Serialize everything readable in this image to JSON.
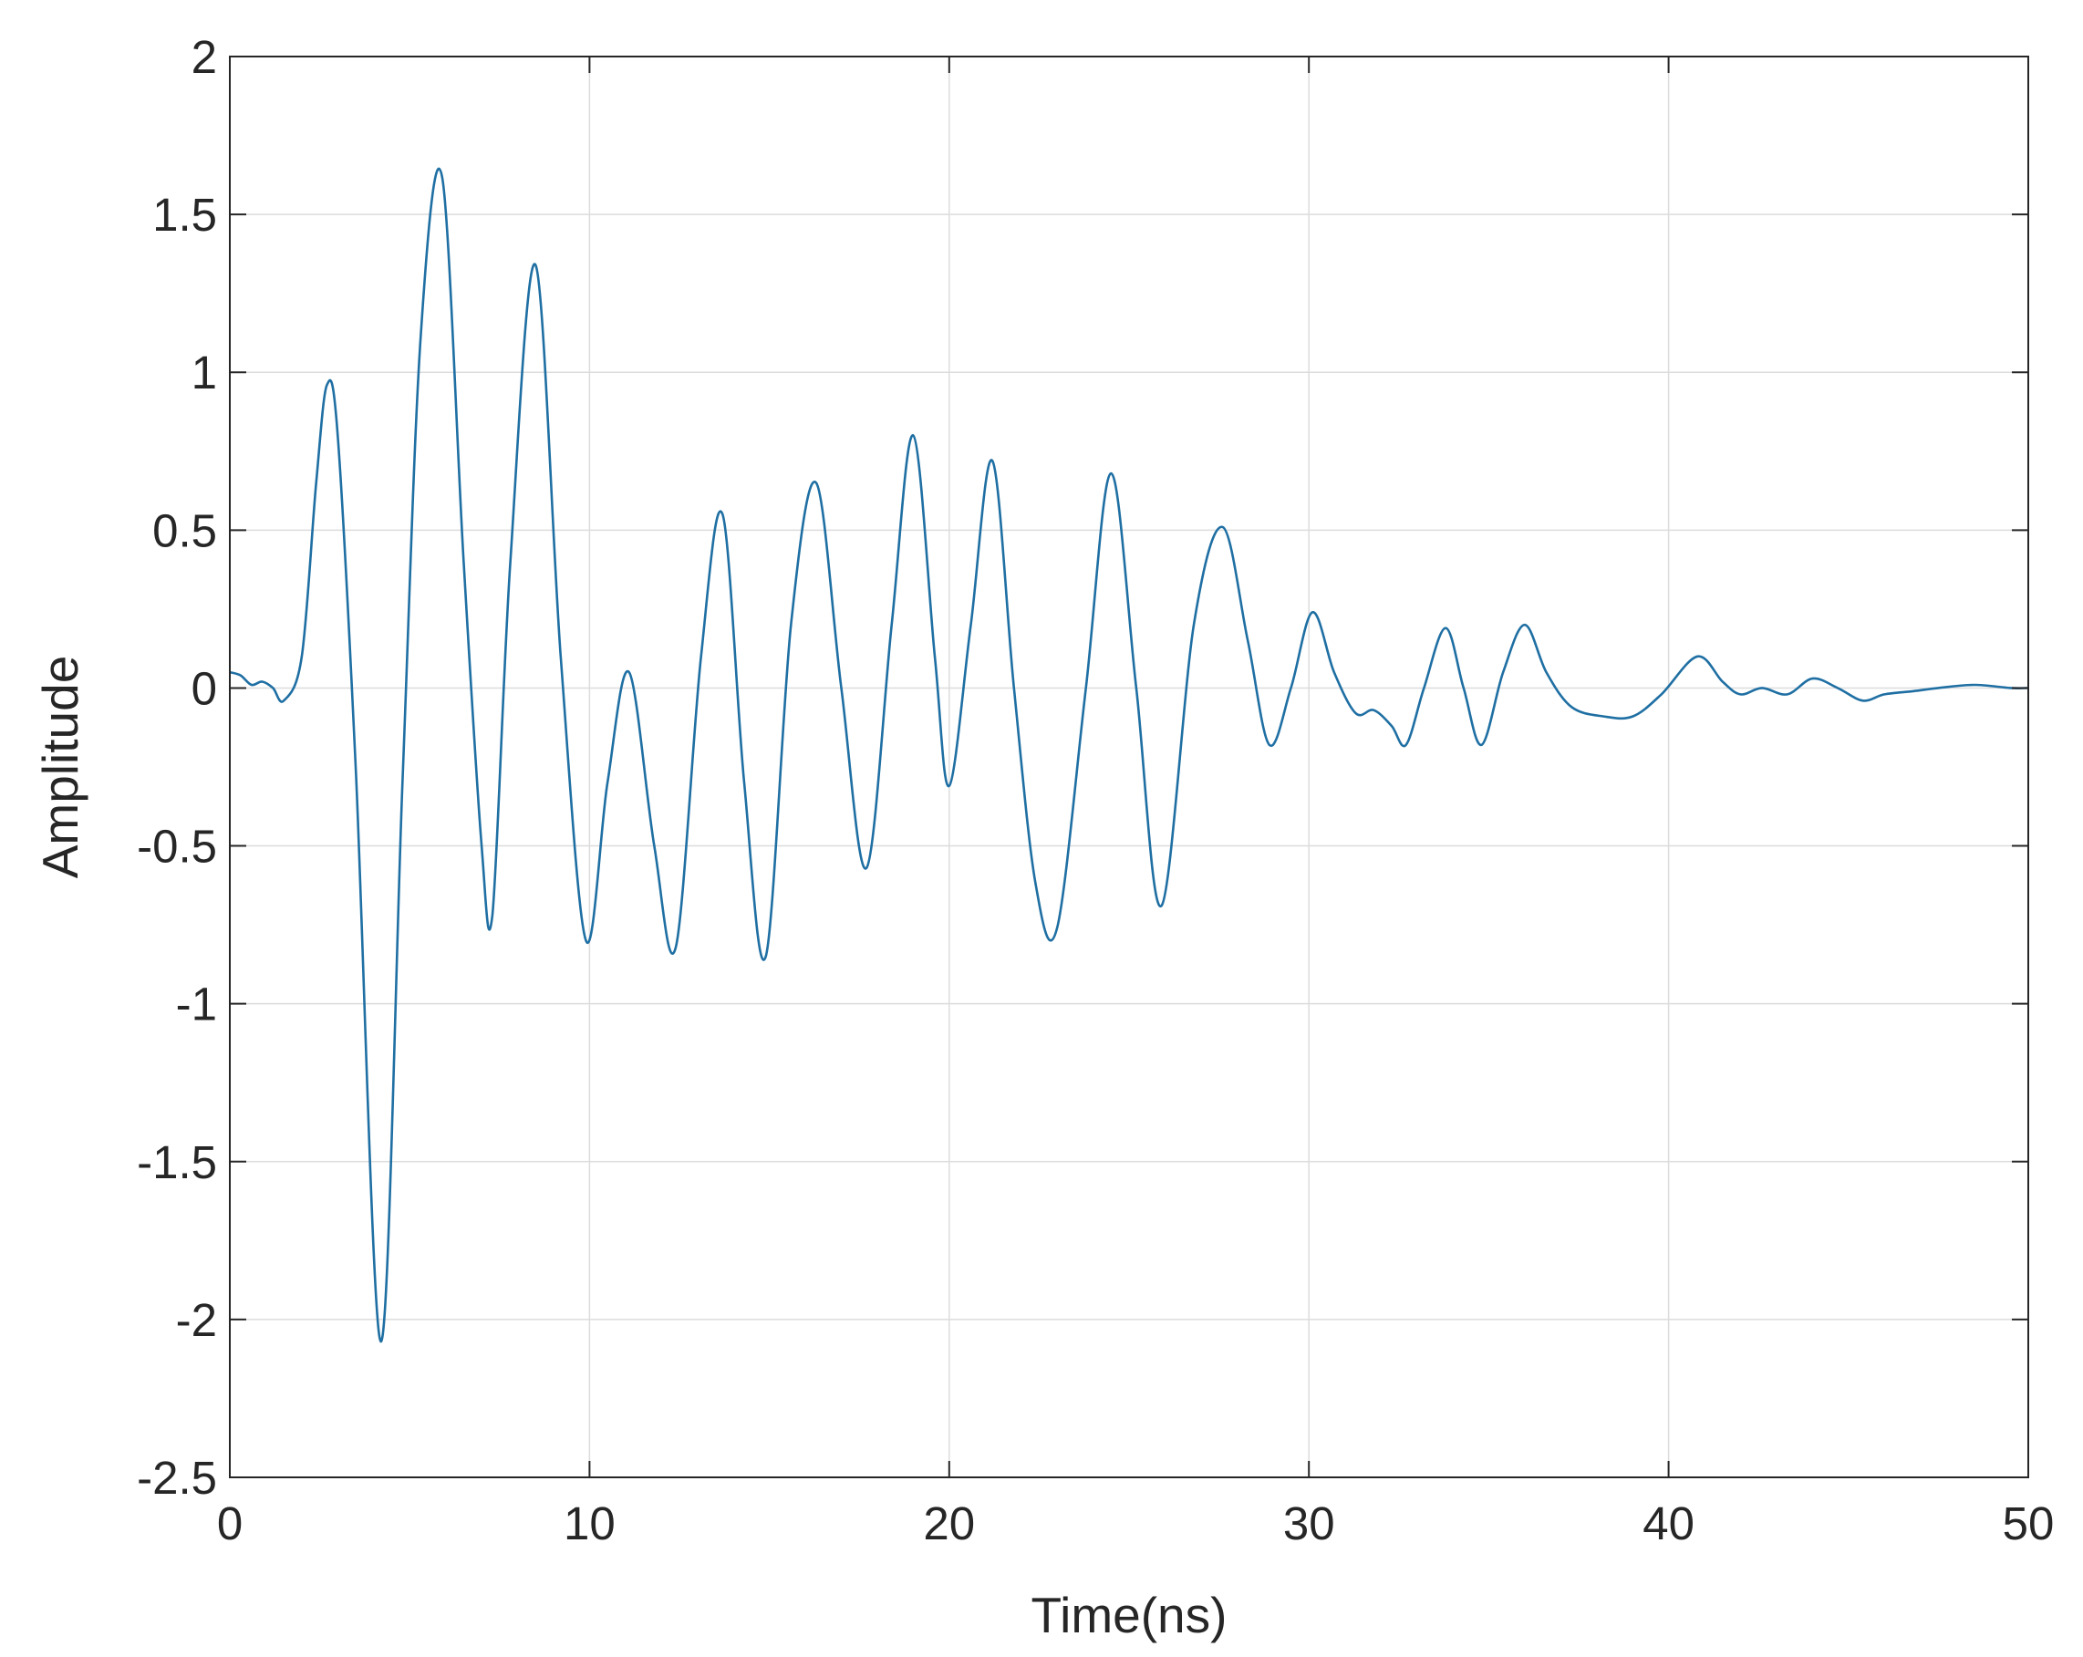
{
  "chart_data": {
    "type": "line",
    "title": "",
    "xlabel": "Time(ns)",
    "ylabel": "Amplitude",
    "xlim": [
      0,
      50
    ],
    "ylim": [
      -2.5,
      2
    ],
    "xticks": [
      0,
      10,
      20,
      30,
      40,
      50
    ],
    "xtick_labels": [
      "0",
      "10",
      "20",
      "30",
      "40",
      "50"
    ],
    "yticks": [
      -2.5,
      -2,
      -1.5,
      -1,
      -0.5,
      0,
      0.5,
      1,
      1.5,
      2
    ],
    "ytick_labels": [
      "-2.5",
      "-2",
      "-1.5",
      "-1",
      "-0.5",
      "0",
      "0.5",
      "1",
      "1.5",
      "2"
    ],
    "grid": true,
    "legend": "none",
    "line_color": "#1f6fa3",
    "series": [
      {
        "x": [
          0,
          0.3,
          0.6,
          0.9,
          1.2,
          1.5,
          2.0,
          2.4,
          2.7,
          3.0,
          3.5,
          4.2,
          4.8,
          5.3,
          5.9,
          6.5,
          7.0,
          7.3,
          7.8,
          8.5,
          9.2,
          9.9,
          10.5,
          11.1,
          11.8,
          12.4,
          13.1,
          13.7,
          14.3,
          14.9,
          15.6,
          16.3,
          17.0,
          17.7,
          18.4,
          19.0,
          19.6,
          20.0,
          20.6,
          21.2,
          21.8,
          22.4,
          23.0,
          23.8,
          24.5,
          25.2,
          25.9,
          26.8,
          27.6,
          28.3,
          28.9,
          29.5,
          30.1,
          30.7,
          31.3,
          31.8,
          32.3,
          32.7,
          33.2,
          33.8,
          34.3,
          34.8,
          35.4,
          36.0,
          36.6,
          37.3,
          38.2,
          39.0,
          39.8,
          40.8,
          41.5,
          42.0,
          42.6,
          43.3,
          44.0,
          44.7,
          45.4,
          46.0,
          46.8,
          47.5,
          48.5,
          49.5,
          50
        ],
        "y": [
          0.05,
          0.04,
          0.01,
          0.02,
          0.0,
          -0.04,
          0.1,
          0.65,
          0.96,
          0.8,
          -0.25,
          -2.07,
          -0.3,
          1.1,
          1.62,
          0.4,
          -0.5,
          -0.72,
          0.4,
          1.34,
          0.1,
          -0.8,
          -0.3,
          0.05,
          -0.5,
          -0.82,
          0.1,
          0.55,
          -0.3,
          -0.85,
          0.2,
          0.65,
          0.0,
          -0.57,
          0.2,
          0.8,
          0.1,
          -0.31,
          0.2,
          0.72,
          0.0,
          -0.62,
          -0.76,
          0.0,
          0.68,
          0.0,
          -0.69,
          0.2,
          0.51,
          0.15,
          -0.18,
          0.0,
          0.24,
          0.05,
          -0.08,
          -0.07,
          -0.12,
          -0.18,
          0.0,
          0.19,
          0.0,
          -0.18,
          0.05,
          0.2,
          0.05,
          -0.06,
          -0.09,
          -0.09,
          -0.02,
          0.1,
          0.02,
          -0.02,
          0.0,
          -0.02,
          0.03,
          0.0,
          -0.04,
          -0.02,
          -0.01,
          0.0,
          0.01,
          0.0,
          0.0
        ]
      }
    ]
  }
}
